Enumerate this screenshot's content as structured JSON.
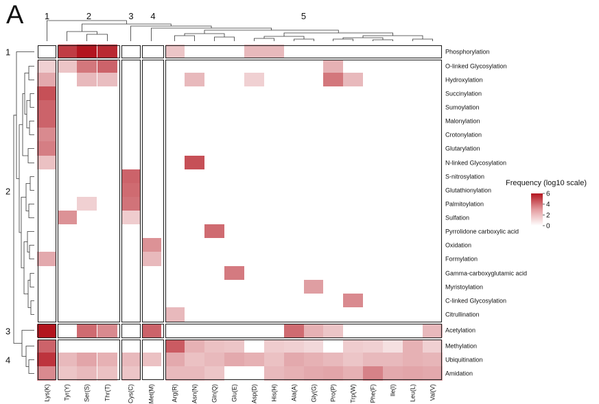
{
  "panel_label": "A",
  "chart_data": {
    "type": "heatmap",
    "title": "",
    "legend": {
      "title": "Frequency (log10 scale)",
      "ticks": [
        "6",
        "4",
        "2",
        "0"
      ],
      "low_color": "#ffffff",
      "high_color": "#b3151f",
      "min": 0,
      "max": 6
    },
    "column_clusters": [
      {
        "label": "1",
        "count": 1
      },
      {
        "label": "2",
        "count": 3
      },
      {
        "label": "3",
        "count": 1
      },
      {
        "label": "4",
        "count": 1
      },
      {
        "label": "5",
        "count": 14
      }
    ],
    "row_clusters": [
      {
        "label": "1",
        "count": 1
      },
      {
        "label": "2",
        "count": 19
      },
      {
        "label": "3",
        "count": 1
      },
      {
        "label": "4",
        "count": 3
      }
    ],
    "columns": [
      "Lys(K)",
      "Tyr(Y)",
      "Ser(S)",
      "Thr(T)",
      "Cys(C)",
      "Met(M)",
      "Arg(R)",
      "Asn(N)",
      "Gln(Q)",
      "Glu(E)",
      "Asp(D)",
      "His(H)",
      "Ala(A)",
      "Gly(G)",
      "Pro(P)",
      "Trp(W)",
      "Phe(F)",
      "Ile(I)",
      "Leu(L)",
      "Val(V)"
    ],
    "rows": [
      "Phosphorylation",
      "O-linked Glycosylation",
      "Hydroxylation",
      "Succinylation",
      "Sumoylation",
      "Malonylation",
      "Crotonylation",
      "Glutarylation",
      "N-linked Glycosylation",
      "S-nitrosylation",
      "Glutathionylation",
      "Palmitoylation",
      "Sulfation",
      "Pyrrolidone carboxylic acid",
      "Oxidation",
      "Formylation",
      "Gamma-carboxyglutamic acid",
      "Myristoylation",
      "C-linked Glycosylation",
      "Citrullination",
      "Acetylation",
      "Methylation",
      "Ubiquitination",
      "Amidation"
    ],
    "values": [
      [
        0,
        5,
        6,
        5.5,
        0,
        0,
        1.5,
        0,
        0,
        0,
        1.8,
        1.8,
        0,
        0,
        0,
        0,
        0,
        0,
        0,
        0
      ],
      [
        1.2,
        1.5,
        3.5,
        4,
        0,
        0,
        0,
        0,
        0,
        0,
        0,
        0,
        0,
        0,
        2,
        0,
        0,
        0,
        0,
        0
      ],
      [
        2.2,
        0,
        1.8,
        1.7,
        0,
        0,
        0,
        1.8,
        0,
        0,
        1.2,
        0,
        0,
        0,
        3.5,
        1.8,
        0,
        0,
        0,
        0
      ],
      [
        4.5,
        0,
        0,
        0,
        0,
        0,
        0,
        0,
        0,
        0,
        0,
        0,
        0,
        0,
        0,
        0,
        0,
        0,
        0,
        0
      ],
      [
        4,
        0,
        0,
        0,
        0,
        0,
        0,
        0,
        0,
        0,
        0,
        0,
        0,
        0,
        0,
        0,
        0,
        0,
        0,
        0
      ],
      [
        4,
        0,
        0,
        0,
        0,
        0,
        0,
        0,
        0,
        0,
        0,
        0,
        0,
        0,
        0,
        0,
        0,
        0,
        0,
        0
      ],
      [
        3,
        0,
        0,
        0,
        0,
        0,
        0,
        0,
        0,
        0,
        0,
        0,
        0,
        0,
        0,
        0,
        0,
        0,
        0,
        0
      ],
      [
        3.3,
        0,
        0,
        0,
        0,
        0,
        0,
        0,
        0,
        0,
        0,
        0,
        0,
        0,
        0,
        0,
        0,
        0,
        0,
        0
      ],
      [
        1.6,
        0,
        0,
        0,
        0,
        0,
        0,
        4.5,
        0,
        0,
        0,
        0,
        0,
        0,
        0,
        0,
        0,
        0,
        0,
        0
      ],
      [
        0,
        0,
        0,
        0,
        4,
        0,
        0,
        0,
        0,
        0,
        0,
        0,
        0,
        0,
        0,
        0,
        0,
        0,
        0,
        0
      ],
      [
        0,
        0,
        0,
        0,
        3.8,
        0,
        0,
        0,
        0,
        0,
        0,
        0,
        0,
        0,
        0,
        0,
        0,
        0,
        0,
        0
      ],
      [
        0,
        0,
        1.2,
        0,
        3.6,
        0,
        0,
        0,
        0,
        0,
        0,
        0,
        0,
        0,
        0,
        0,
        0,
        0,
        0,
        0
      ],
      [
        0,
        2.8,
        0,
        0,
        1.3,
        0,
        0,
        0,
        0,
        0,
        0,
        0,
        0,
        0,
        0,
        0,
        0,
        0,
        0,
        0
      ],
      [
        0,
        0,
        0,
        0,
        0,
        0,
        0,
        0,
        3.8,
        0,
        0,
        0,
        0,
        0,
        0,
        0,
        0,
        0,
        0,
        0
      ],
      [
        0,
        0,
        0,
        0,
        0,
        2.8,
        0,
        0,
        0,
        0,
        0,
        0,
        0,
        0,
        0,
        0,
        0,
        0,
        0,
        0
      ],
      [
        2.2,
        0,
        0,
        0,
        0,
        1.8,
        0,
        0,
        0,
        0,
        0,
        0,
        0,
        0,
        0,
        0,
        0,
        0,
        0,
        0
      ],
      [
        0,
        0,
        0,
        0,
        0,
        0,
        0,
        0,
        0,
        3.4,
        0,
        0,
        0,
        0,
        0,
        0,
        0,
        0,
        0,
        0
      ],
      [
        0,
        0,
        0,
        0,
        0,
        0,
        0,
        0,
        0,
        0,
        0,
        0,
        0,
        2.5,
        0,
        0,
        0,
        0,
        0,
        0
      ],
      [
        0,
        0,
        0,
        0,
        0,
        0,
        0,
        0,
        0,
        0,
        0,
        0,
        0,
        0,
        0,
        3,
        0,
        0,
        0,
        0
      ],
      [
        0,
        0,
        0,
        0,
        0,
        0,
        1.8,
        0,
        0,
        0,
        0,
        0,
        0,
        0,
        0,
        0,
        0,
        0,
        0,
        0
      ],
      [
        6,
        0,
        3.8,
        3,
        0,
        4,
        0,
        0,
        0,
        0,
        0,
        0,
        3.8,
        2,
        1.5,
        0,
        0,
        0,
        0,
        1.8
      ],
      [
        4,
        0,
        0,
        0,
        0,
        0,
        4.2,
        2,
        1.6,
        1.5,
        0,
        1.3,
        1.2,
        1,
        0,
        1.3,
        1.2,
        0.8,
        2,
        1.2
      ],
      [
        5.2,
        1.8,
        2.3,
        2,
        1.8,
        1.6,
        2.2,
        1.6,
        1.8,
        2.2,
        2,
        1.6,
        2.2,
        2,
        1.8,
        1.5,
        1.8,
        1.8,
        2,
        1.9
      ],
      [
        3,
        1.5,
        1.8,
        1.6,
        1.5,
        0,
        1.8,
        1.8,
        1.5,
        0,
        0,
        1.8,
        2,
        2.2,
        2.3,
        2,
        3.2,
        2.2,
        2.3,
        2.2
      ]
    ]
  }
}
